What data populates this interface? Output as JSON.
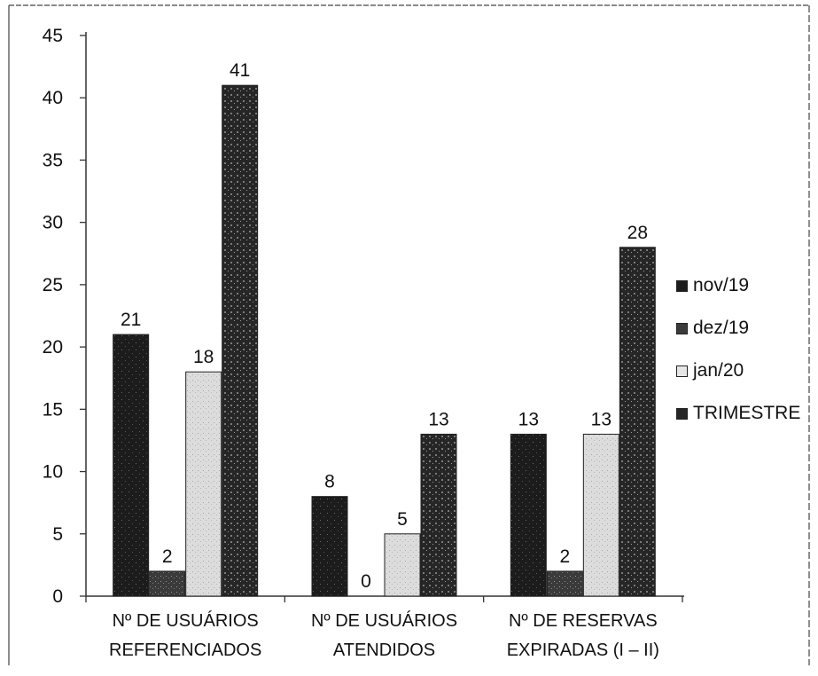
{
  "chart_data": {
    "type": "bar",
    "categories": [
      [
        "Nº DE USUÁRIOS",
        "REFERENCIADOS"
      ],
      [
        "Nº DE USUÁRIOS",
        "ATENDIDOS"
      ],
      [
        "Nº DE RESERVAS",
        "EXPIRADAS (I – II)"
      ]
    ],
    "series": [
      {
        "name": "nov/19",
        "values": [
          21,
          8,
          13
        ],
        "color": "#1f1f1f"
      },
      {
        "name": "dez/19",
        "values": [
          2,
          0,
          2
        ],
        "color": "#3a3a3a"
      },
      {
        "name": "jan/20",
        "values": [
          18,
          5,
          13
        ],
        "color": "#d9d9d9"
      },
      {
        "name": "TRIMESTRE",
        "values": [
          41,
          13,
          28
        ],
        "color": "#2b2b2b"
      }
    ],
    "y_ticks": [
      "0",
      "5",
      "10",
      "15",
      "20",
      "25",
      "30",
      "35",
      "40",
      "45"
    ],
    "ylim": [
      0,
      45
    ],
    "grid": false,
    "legend_position": "right",
    "data_labels": true
  }
}
